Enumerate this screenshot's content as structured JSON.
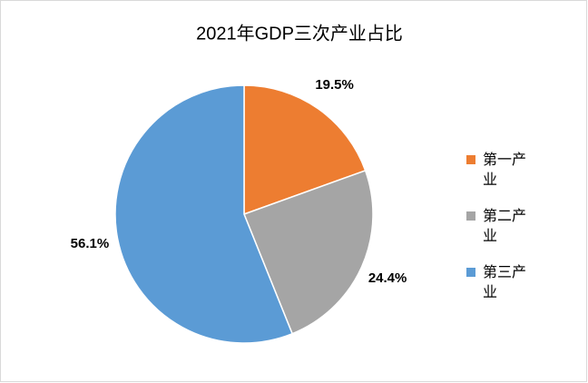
{
  "chart_data": {
    "type": "pie",
    "title": "2021年GDP三次产业占比",
    "categories": [
      "第一产业",
      "第二产业",
      "第三产业"
    ],
    "values": [
      19.5,
      24.4,
      56.1
    ],
    "value_labels": [
      "19.5%",
      "24.4%",
      "56.1%"
    ],
    "colors": [
      "#ED7D31",
      "#A5A5A5",
      "#5B9BD5"
    ],
    "legend": "right"
  }
}
